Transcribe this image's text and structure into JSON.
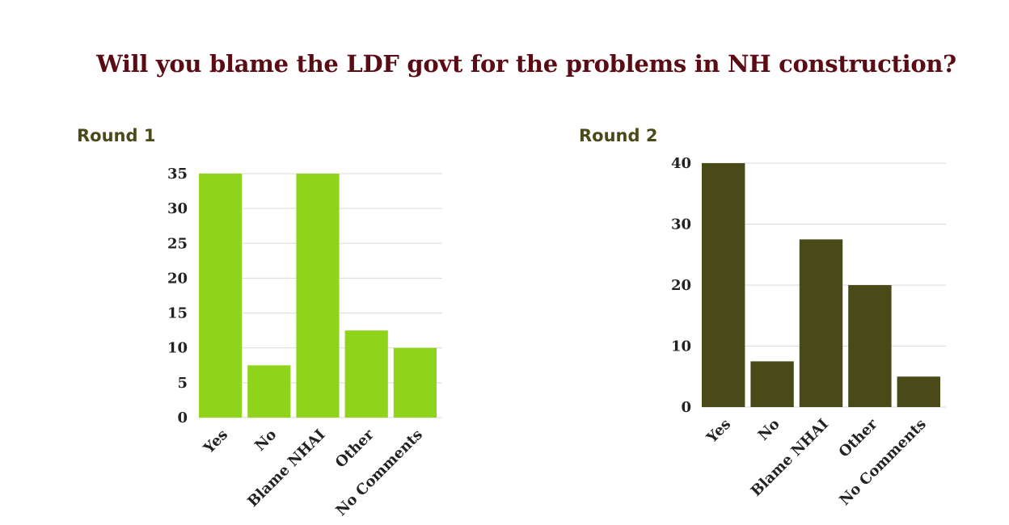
{
  "title": "Will you blame the LDF govt for the problems in NH construction?",
  "chart_data": [
    {
      "type": "bar",
      "label": "Round 1",
      "categories": [
        "Yes",
        "No",
        "Blame NHAI",
        "Other",
        "No Comments"
      ],
      "values": [
        35,
        7.5,
        35,
        12.5,
        10
      ],
      "yticks": [
        0,
        5,
        10,
        15,
        20,
        25,
        30,
        35
      ],
      "ylim": [
        0,
        35
      ],
      "grid": true,
      "color": "#8fd41a"
    },
    {
      "type": "bar",
      "label": "Round 2",
      "categories": [
        "Yes",
        "No",
        "Blame NHAI",
        "Other",
        "No Comments"
      ],
      "values": [
        40,
        7.5,
        27.5,
        20,
        5
      ],
      "yticks": [
        0,
        10,
        20,
        30,
        40
      ],
      "ylim": [
        0,
        40
      ],
      "grid": true,
      "color": "#4a4a18"
    }
  ]
}
